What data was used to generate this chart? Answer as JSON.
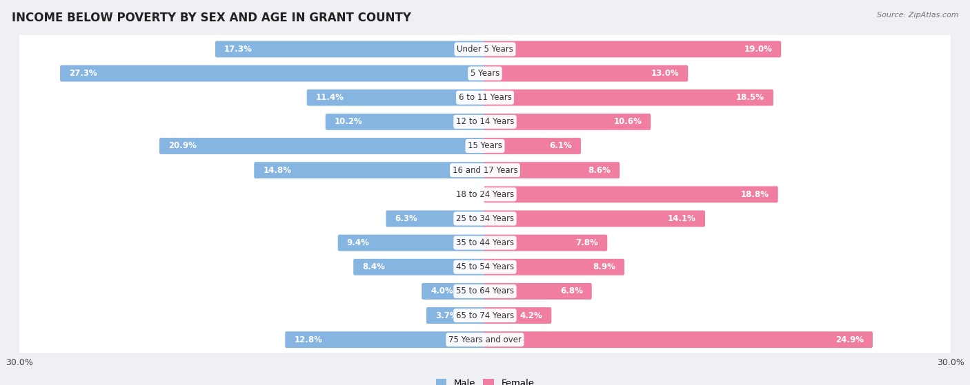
{
  "title": "INCOME BELOW POVERTY BY SEX AND AGE IN GRANT COUNTY",
  "source": "Source: ZipAtlas.com",
  "categories": [
    "Under 5 Years",
    "5 Years",
    "6 to 11 Years",
    "12 to 14 Years",
    "15 Years",
    "16 and 17 Years",
    "18 to 24 Years",
    "25 to 34 Years",
    "35 to 44 Years",
    "45 to 54 Years",
    "55 to 64 Years",
    "65 to 74 Years",
    "75 Years and over"
  ],
  "male": [
    17.3,
    27.3,
    11.4,
    10.2,
    20.9,
    14.8,
    0.0,
    6.3,
    9.4,
    8.4,
    4.0,
    3.7,
    12.8
  ],
  "female": [
    19.0,
    13.0,
    18.5,
    10.6,
    6.1,
    8.6,
    18.8,
    14.1,
    7.8,
    8.9,
    6.8,
    4.2,
    24.9
  ],
  "male_color": "#85b5e0",
  "female_color": "#f07ea0",
  "bg_color": "#eef0f4",
  "bar_bg_color": "#ffffff",
  "row_sep_color": "#d8dce4",
  "axis_max": 30.0,
  "bar_height": 0.52,
  "title_fontsize": 12,
  "label_fontsize": 8.5,
  "cat_fontsize": 8.5,
  "tick_fontsize": 9,
  "source_fontsize": 8
}
